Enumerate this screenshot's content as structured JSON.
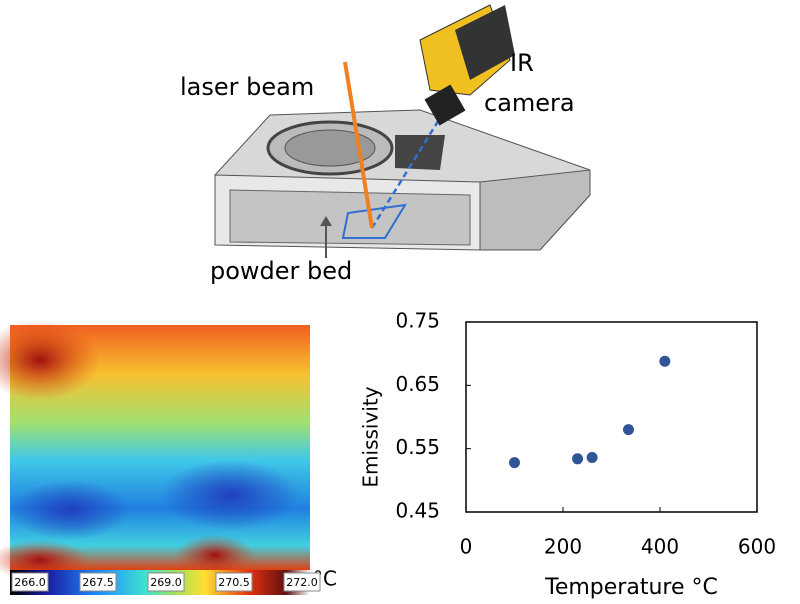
{
  "diagram": {
    "laser_label": "laser beam",
    "camera_label_1": "IR",
    "camera_label_2": "camera",
    "bed_label": "powder bed"
  },
  "thermal": {
    "colorbar_labels": [
      "266.0",
      "267.5",
      "269.0",
      "270.5",
      "272.0"
    ],
    "unit": "°C"
  },
  "chart_data": {
    "type": "scatter",
    "x_label": "Temperature °C",
    "y_label": "Emissivity",
    "x": [
      100,
      230,
      260,
      335,
      410
    ],
    "values": [
      0.528,
      0.534,
      0.536,
      0.58,
      0.688
    ],
    "color": "#2f5597",
    "xlim": [
      0,
      600
    ],
    "xticks": [
      0,
      200,
      400,
      600
    ],
    "ylim": [
      0.45,
      0.75
    ],
    "yticks": [
      0.45,
      0.55,
      0.65,
      0.75
    ]
  }
}
